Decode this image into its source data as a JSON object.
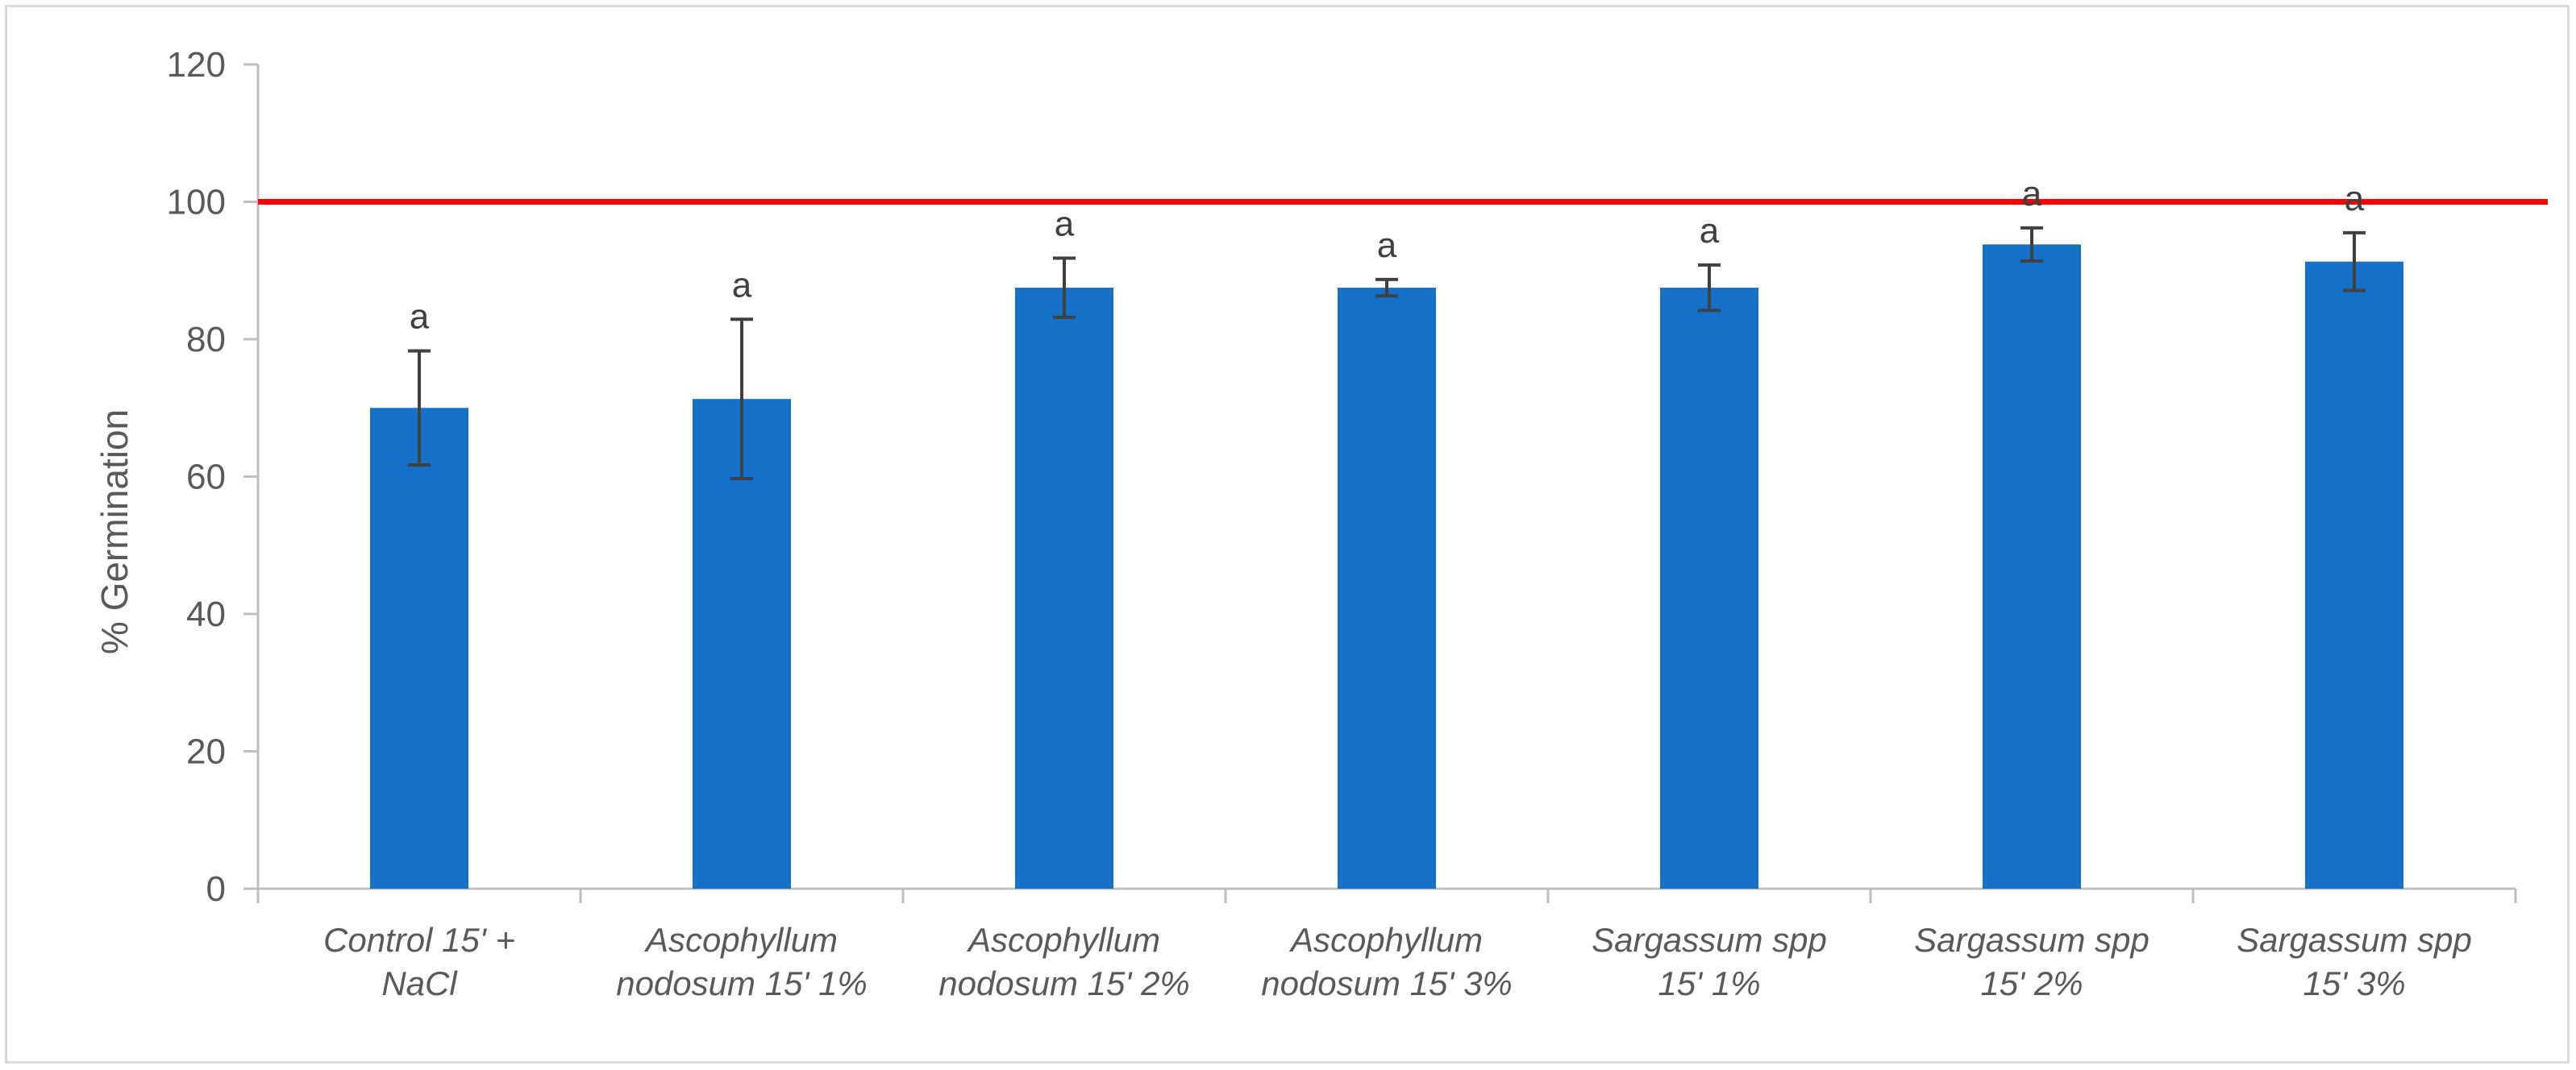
{
  "chart_data": {
    "type": "bar",
    "title": "",
    "xlabel": "",
    "ylabel": "% Germination",
    "ylim": [
      0,
      120
    ],
    "yticks": [
      0,
      20,
      40,
      60,
      80,
      100,
      120
    ],
    "grid": false,
    "legend": "none",
    "categories": [
      [
        "Control 15' +",
        "NaCl"
      ],
      [
        "Ascophyllum",
        "nodosum 15' 1%"
      ],
      [
        "Ascophyllum",
        "nodosum 15' 2%"
      ],
      [
        "Ascophyllum",
        "nodosum 15' 3%"
      ],
      [
        "Sargassum spp",
        "15' 1%"
      ],
      [
        "Sargassum spp",
        "15' 2%"
      ],
      [
        "Sargassum spp",
        "15' 3%"
      ]
    ],
    "values": [
      70,
      71.3,
      87.5,
      87.5,
      87.5,
      93.8,
      91.3
    ],
    "error": [
      8.3,
      11.6,
      4.3,
      1.2,
      3.3,
      2.4,
      4.2
    ],
    "significance_labels": [
      "a",
      "a",
      "a",
      "a",
      "a",
      "a",
      "a"
    ],
    "reference_line": {
      "value": 100,
      "color": "#ff0000"
    },
    "bar_color": "#1570c8"
  }
}
